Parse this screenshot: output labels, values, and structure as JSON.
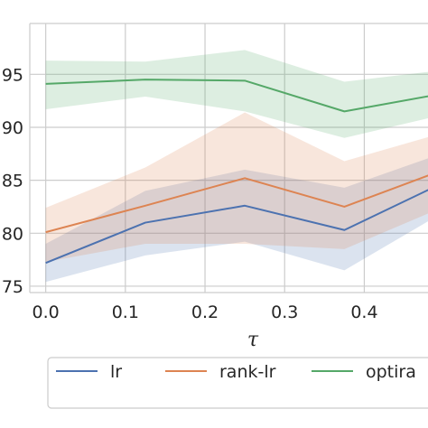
{
  "chart_data": {
    "type": "line",
    "xlabel": "τ",
    "ylabel": "",
    "x": [
      0.0,
      0.125,
      0.25,
      0.375,
      0.5
    ],
    "xlim": [
      -0.02,
      0.48
    ],
    "ylim": [
      0.744,
      0.998
    ],
    "xticks": [
      0.0,
      0.1,
      0.2,
      0.3,
      0.4
    ],
    "xtick_labels": [
      "0.0",
      "0.1",
      "0.2",
      "0.3",
      "0.4"
    ],
    "yticks": [
      0.75,
      0.8,
      0.85,
      0.9,
      0.95
    ],
    "ytick_labels": [
      "75",
      "80",
      "85",
      "90",
      "95"
    ],
    "grid": true,
    "legend_position": "bottom",
    "series": [
      {
        "name": "lr",
        "color": "#4c72b0",
        "values": [
          0.772,
          0.81,
          0.826,
          0.803,
          0.848
        ],
        "lower": [
          0.754,
          0.779,
          0.792,
          0.765,
          0.82
        ],
        "upper": [
          0.79,
          0.84,
          0.86,
          0.843,
          0.876
        ]
      },
      {
        "name": "rank-lr",
        "color": "#dd8452",
        "values": [
          0.801,
          0.826,
          0.852,
          0.825,
          0.86
        ],
        "lower": [
          0.773,
          0.79,
          0.79,
          0.785,
          0.825
        ],
        "upper": [
          0.824,
          0.862,
          0.914,
          0.868,
          0.895
        ]
      },
      {
        "name": "optira",
        "color": "#55a868",
        "values": [
          0.941,
          0.945,
          0.944,
          0.915,
          0.932
        ],
        "lower": [
          0.917,
          0.929,
          0.915,
          0.89,
          0.912
        ],
        "upper": [
          0.963,
          0.962,
          0.973,
          0.943,
          0.954
        ]
      }
    ]
  }
}
